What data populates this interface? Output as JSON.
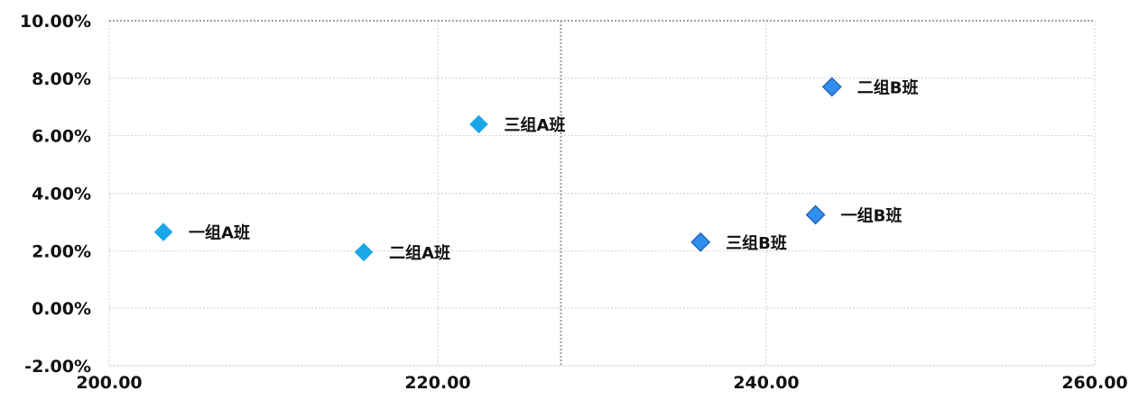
{
  "chart_data": {
    "type": "scatter",
    "title": "",
    "xlabel": "",
    "ylabel": "",
    "xlim": [
      200,
      260
    ],
    "ylim": [
      -0.02,
      0.1
    ],
    "x_tick_values": [
      200,
      220,
      240,
      260
    ],
    "x_tick_labels": [
      "200.00",
      "220.00",
      "240.00",
      "260.00"
    ],
    "y_tick_values": [
      -0.02,
      0,
      0.02,
      0.04,
      0.06,
      0.08,
      0.1
    ],
    "y_tick_labels": [
      "-2.00%",
      "0.00%",
      "2.00%",
      "4.00%",
      "6.00%",
      "8.00%",
      "10.00%"
    ],
    "grid": true,
    "reference_lines": {
      "x": 227.5,
      "y": 0.1
    },
    "colors": {
      "group_a": "#1aa7e8",
      "group_b": "#2f8ff0",
      "marker_edge_b": "#1d5fb5",
      "grid": "#cfcfcf",
      "reference_line": "#9f9f9f"
    },
    "points": [
      {
        "label": "一组A班",
        "x": 203.3,
        "y": 0.0265,
        "group": "A"
      },
      {
        "label": "二组A班",
        "x": 215.5,
        "y": 0.0195,
        "group": "A"
      },
      {
        "label": "三组A班",
        "x": 222.5,
        "y": 0.064,
        "group": "A"
      },
      {
        "label": "一组B班",
        "x": 243.0,
        "y": 0.0325,
        "group": "B"
      },
      {
        "label": "二组B班",
        "x": 244.0,
        "y": 0.077,
        "group": "B"
      },
      {
        "label": "三组B班",
        "x": 236.0,
        "y": 0.023,
        "group": "B"
      }
    ]
  }
}
